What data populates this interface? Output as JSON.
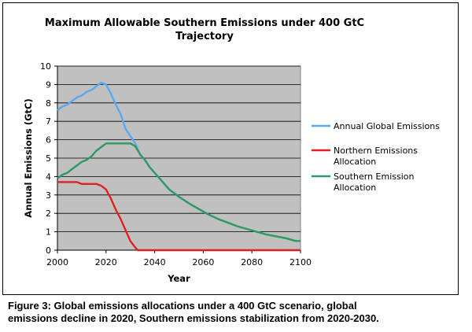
{
  "chart_data": {
    "type": "line",
    "title_lines": [
      "Maximum Allowable Southern Emissions under 400 GtC",
      "Trajectory"
    ],
    "xlabel": "Year",
    "ylabel": "Annual Emissions (GtC)",
    "xlim": [
      2000,
      2100
    ],
    "ylim": [
      0,
      10
    ],
    "x_ticks": [
      2000,
      2020,
      2040,
      2060,
      2080,
      2100
    ],
    "y_ticks": [
      0,
      1,
      2,
      3,
      4,
      5,
      6,
      7,
      8,
      9,
      10
    ],
    "grid": "horizontal",
    "legend_position": "right",
    "series": [
      {
        "name": "Annual Global Emissions",
        "color": "#5aa8f0",
        "legend_lines": [
          "Annual Global Emissions"
        ],
        "points": [
          [
            2000,
            7.6
          ],
          [
            2002,
            7.8
          ],
          [
            2004,
            7.9
          ],
          [
            2006,
            8.1
          ],
          [
            2008,
            8.3
          ],
          [
            2010,
            8.4
          ],
          [
            2012,
            8.6
          ],
          [
            2014,
            8.7
          ],
          [
            2016,
            8.9
          ],
          [
            2018,
            9.1
          ],
          [
            2020,
            9.0
          ],
          [
            2022,
            8.5
          ],
          [
            2024,
            7.9
          ],
          [
            2026,
            7.4
          ],
          [
            2028,
            6.6
          ],
          [
            2030,
            6.2
          ],
          [
            2032,
            5.8
          ],
          [
            2034,
            5.2
          ],
          [
            2036,
            4.9
          ],
          [
            2038,
            4.5
          ],
          [
            2040,
            4.2
          ],
          [
            2042,
            3.9
          ],
          [
            2044,
            3.6
          ],
          [
            2046,
            3.3
          ],
          [
            2048,
            3.1
          ],
          [
            2050,
            2.9
          ],
          [
            2054,
            2.55
          ],
          [
            2058,
            2.25
          ],
          [
            2062,
            1.95
          ],
          [
            2066,
            1.7
          ],
          [
            2070,
            1.5
          ],
          [
            2074,
            1.3
          ],
          [
            2078,
            1.15
          ],
          [
            2082,
            1.0
          ],
          [
            2086,
            0.85
          ],
          [
            2090,
            0.75
          ],
          [
            2094,
            0.65
          ],
          [
            2098,
            0.5
          ],
          [
            2100,
            0.5
          ]
        ]
      },
      {
        "name": "Northern Emissions Allocation",
        "color": "#e02020",
        "legend_lines": [
          "Northern Emissions",
          "Allocation"
        ],
        "points": [
          [
            2000,
            3.7
          ],
          [
            2004,
            3.7
          ],
          [
            2008,
            3.7
          ],
          [
            2010,
            3.6
          ],
          [
            2014,
            3.6
          ],
          [
            2016,
            3.6
          ],
          [
            2018,
            3.5
          ],
          [
            2020,
            3.3
          ],
          [
            2022,
            2.8
          ],
          [
            2024,
            2.2
          ],
          [
            2026,
            1.7
          ],
          [
            2028,
            1.1
          ],
          [
            2030,
            0.5
          ],
          [
            2032,
            0.15
          ],
          [
            2033,
            0.0
          ],
          [
            2100,
            0.0
          ]
        ]
      },
      {
        "name": "Southern Emission Allocation",
        "color": "#2e9a62",
        "legend_lines": [
          "Southern Emission",
          "Allocation"
        ],
        "points": [
          [
            2000,
            3.9
          ],
          [
            2002,
            4.1
          ],
          [
            2004,
            4.2
          ],
          [
            2006,
            4.4
          ],
          [
            2008,
            4.6
          ],
          [
            2010,
            4.8
          ],
          [
            2012,
            4.9
          ],
          [
            2014,
            5.1
          ],
          [
            2016,
            5.4
          ],
          [
            2018,
            5.6
          ],
          [
            2020,
            5.8
          ],
          [
            2024,
            5.8
          ],
          [
            2028,
            5.8
          ],
          [
            2030,
            5.8
          ],
          [
            2032,
            5.65
          ],
          [
            2034,
            5.2
          ],
          [
            2036,
            4.9
          ],
          [
            2038,
            4.5
          ],
          [
            2040,
            4.2
          ],
          [
            2042,
            3.9
          ],
          [
            2044,
            3.6
          ],
          [
            2046,
            3.3
          ],
          [
            2048,
            3.1
          ],
          [
            2050,
            2.9
          ],
          [
            2054,
            2.55
          ],
          [
            2058,
            2.25
          ],
          [
            2062,
            1.95
          ],
          [
            2066,
            1.7
          ],
          [
            2070,
            1.5
          ],
          [
            2074,
            1.3
          ],
          [
            2078,
            1.15
          ],
          [
            2082,
            1.0
          ],
          [
            2086,
            0.85
          ],
          [
            2090,
            0.75
          ],
          [
            2094,
            0.65
          ],
          [
            2098,
            0.5
          ],
          [
            2100,
            0.5
          ]
        ]
      }
    ]
  },
  "caption": {
    "line1": "Figure 3: Global emissions allocations under a 400 GtC scenario, global",
    "line2": "emissions decline in 2020, Southern emissions stabilization from 2020-2030."
  }
}
